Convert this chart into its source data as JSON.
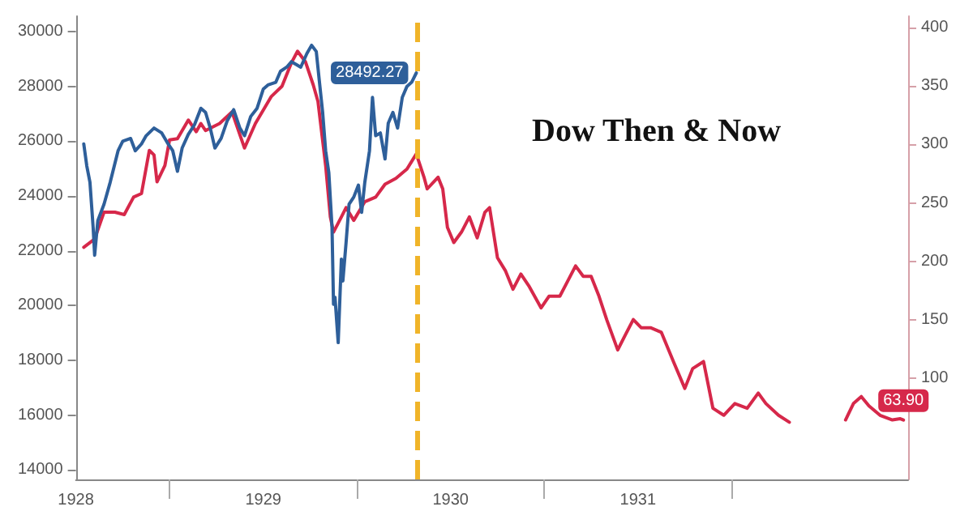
{
  "chart_data": {
    "type": "line",
    "title": "Dow Then & Now",
    "xlim": [
      1928.5,
      1932.942
    ],
    "xticks": [
      {
        "value": 1929,
        "label": null
      },
      {
        "value": 1930,
        "label": null
      },
      {
        "value": 1931,
        "label": null
      },
      {
        "value": 1932,
        "label": null
      },
      {
        "value": 1928.5,
        "label": "1928"
      },
      {
        "value": 1929.5,
        "label": "1929"
      },
      {
        "value": 1930.5,
        "label": "1930"
      },
      {
        "value": 1931.5,
        "label": "1931"
      }
    ],
    "ylim": [
      13660,
      30560
    ],
    "yticks": [
      14000,
      16000,
      18000,
      20000,
      22000,
      24000,
      26000,
      28000,
      30000
    ],
    "y2lim": [
      13,
      410
    ],
    "y2ticks": [
      100,
      150,
      200,
      250,
      300,
      350,
      400
    ],
    "grid": false,
    "marker": "none",
    "line_style": "solid",
    "ref_lines": [
      {
        "axis": "x",
        "value": 1930.317,
        "color": "#f0b429",
        "line_style": "dashed"
      }
    ],
    "series": [
      {
        "color": "#d6284a",
        "axis": "y2",
        "x": [
          1928.542,
          1928.6,
          1928.65,
          1928.708,
          1928.758,
          1928.808,
          1928.85,
          1928.892,
          1928.917,
          1928.933,
          1928.975,
          1929.0,
          1929.042,
          1929.1,
          1929.142,
          1929.167,
          1929.192,
          1929.267,
          1929.333,
          1929.4,
          1929.458,
          1929.542,
          1929.6,
          1929.65,
          1929.683,
          1929.725,
          1929.767,
          1929.792,
          1929.833,
          1929.858,
          1929.875,
          1929.917,
          1929.942,
          1929.983,
          1930.042,
          1930.1,
          1930.15,
          1930.208,
          1930.267,
          1930.317,
          1930.358,
          1930.375,
          1930.433,
          1930.458,
          1930.483,
          1930.517,
          1930.558,
          1930.6,
          1930.642,
          1930.683,
          1930.708,
          1930.75,
          1930.792,
          1930.833,
          1930.875,
          1930.917,
          1930.983,
          1931.025,
          1931.083,
          1931.125,
          1931.167,
          1931.208,
          1931.25,
          1931.292,
          1931.333,
          1931.392,
          1931.433,
          1931.475,
          1931.517,
          1931.567,
          1931.625,
          1931.692,
          1931.75,
          1931.792,
          1931.85,
          1931.9,
          1931.958,
          1932.017,
          1932.083,
          1932.142,
          1932.183,
          1932.25,
          1932.308,
          1932.458,
          1932.608,
          1932.65,
          1932.692,
          1932.733,
          1932.792,
          1932.858,
          1932.9,
          1932.917
        ],
        "values": [
          212,
          219,
          242,
          242,
          240,
          255,
          258,
          295,
          291,
          268,
          282,
          304,
          305,
          321,
          311,
          318,
          312,
          318,
          328,
          297,
          318,
          341,
          350,
          370,
          380,
          371,
          351,
          337,
          282,
          238,
          225,
          238,
          246,
          235,
          251,
          255,
          266,
          271,
          279,
          292,
          272,
          262,
          272,
          262,
          229,
          216,
          225,
          238,
          220,
          242,
          246,
          203,
          192,
          176,
          189,
          179,
          160,
          170,
          170,
          183,
          196,
          187,
          187,
          170,
          150,
          124,
          137,
          150,
          143,
          143,
          139,
          113,
          91,
          108,
          114,
          74,
          68,
          78,
          74,
          87,
          78,
          68,
          62,
          null,
          64,
          78,
          84,
          76,
          68,
          64,
          65,
          63.9
        ],
        "value_labels": [
          null,
          null,
          null,
          null,
          null,
          null,
          null,
          null,
          null,
          null,
          null,
          null,
          null,
          null,
          null,
          null,
          null,
          null,
          null,
          null,
          null,
          null,
          null,
          null,
          null,
          null,
          null,
          null,
          null,
          null,
          null,
          null,
          null,
          null,
          null,
          null,
          null,
          null,
          null,
          null,
          null,
          null,
          null,
          null,
          null,
          null,
          null,
          null,
          null,
          null,
          null,
          null,
          null,
          null,
          null,
          null,
          null,
          null,
          null,
          null,
          null,
          null,
          null,
          null,
          null,
          null,
          null,
          null,
          null,
          null,
          null,
          null,
          null,
          null,
          null,
          null,
          null,
          null,
          null,
          null,
          null,
          null,
          null,
          null,
          null,
          null,
          null,
          null,
          null,
          null,
          null,
          "63.90"
        ]
      },
      {
        "color": "#2e5f9a",
        "x": [
          1928.542,
          1928.558,
          1928.575,
          1928.592,
          1928.6,
          1928.617,
          1928.65,
          1928.683,
          1928.725,
          1928.75,
          1928.792,
          1928.817,
          1928.85,
          1928.875,
          1928.917,
          1928.958,
          1928.992,
          1929.017,
          1929.042,
          1929.067,
          1929.1,
          1929.133,
          1929.167,
          1929.192,
          1929.217,
          1929.242,
          1929.275,
          1929.308,
          1929.342,
          1929.375,
          1929.4,
          1929.433,
          1929.467,
          1929.5,
          1929.525,
          1929.567,
          1929.592,
          1929.625,
          1929.65,
          1929.675,
          1929.7,
          1929.733,
          1929.758,
          1929.783,
          1929.8,
          1929.817,
          1929.833,
          1929.85,
          1929.867,
          1929.875,
          1929.883,
          1929.9,
          1929.917,
          1929.925,
          1929.942,
          1929.958,
          1929.983,
          1930.008,
          1930.025,
          1930.042,
          1930.067,
          1930.083,
          1930.1,
          1930.125,
          1930.15,
          1930.167,
          1930.192,
          1930.217,
          1930.242,
          1930.267,
          1930.292,
          1930.317
        ],
        "values": [
          25900,
          25100,
          24500,
          22850,
          21840,
          23100,
          23700,
          24500,
          25650,
          26000,
          26100,
          25650,
          25900,
          26200,
          26480,
          26300,
          25900,
          25650,
          24900,
          25750,
          26250,
          26600,
          27200,
          27050,
          26480,
          25750,
          26100,
          26750,
          27150,
          26480,
          26200,
          26900,
          27200,
          27900,
          28050,
          28150,
          28550,
          28700,
          28900,
          28800,
          28700,
          29200,
          29500,
          29270,
          28150,
          27050,
          25650,
          24850,
          22850,
          20050,
          20300,
          18650,
          21700,
          20900,
          22300,
          23700,
          23960,
          24400,
          23400,
          24500,
          25650,
          27600,
          26200,
          26300,
          25350,
          26650,
          27050,
          26480,
          27600,
          28000,
          28150,
          28492.27
        ],
        "value_labels": [
          null,
          null,
          null,
          null,
          null,
          null,
          null,
          null,
          null,
          null,
          null,
          null,
          null,
          null,
          null,
          null,
          null,
          null,
          null,
          null,
          null,
          null,
          null,
          null,
          null,
          null,
          null,
          null,
          null,
          null,
          null,
          null,
          null,
          null,
          null,
          null,
          null,
          null,
          null,
          null,
          null,
          null,
          null,
          null,
          null,
          null,
          null,
          null,
          null,
          null,
          null,
          null,
          null,
          null,
          null,
          null,
          null,
          null,
          null,
          null,
          null,
          null,
          null,
          null,
          null,
          null,
          null,
          null,
          null,
          null,
          null,
          "28492.27"
        ]
      }
    ]
  }
}
